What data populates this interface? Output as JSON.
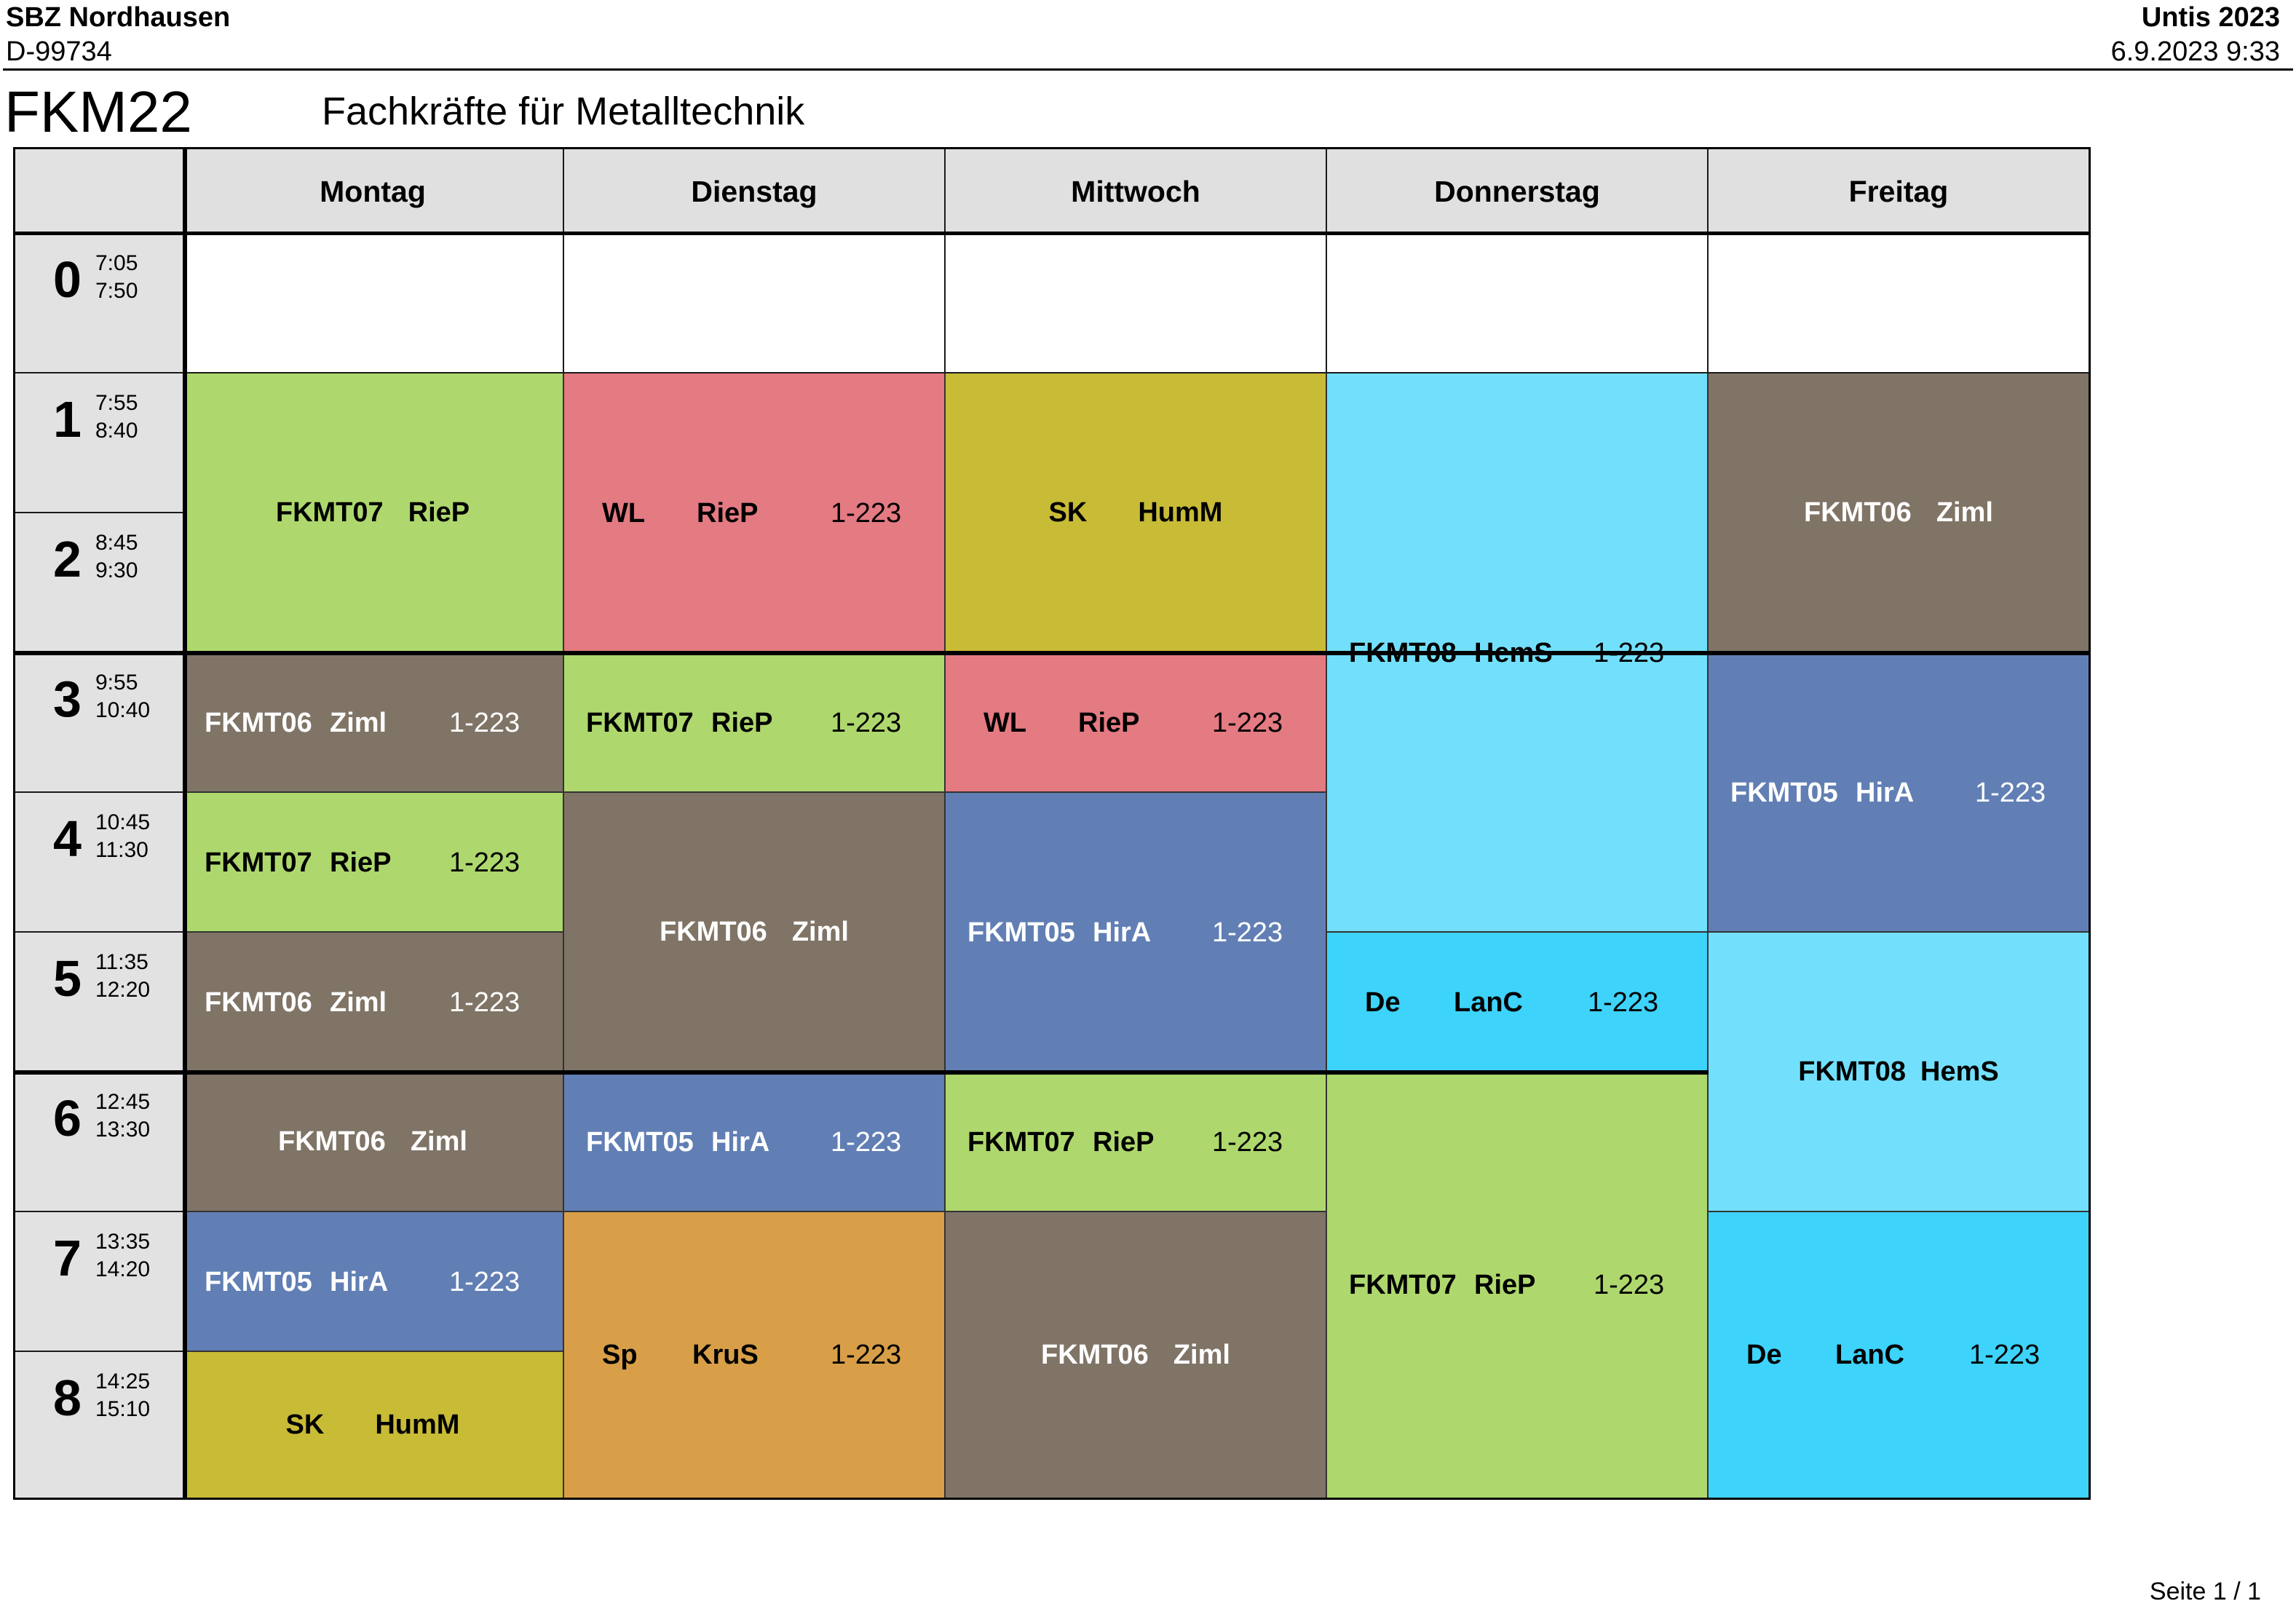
{
  "header": {
    "school": "SBZ Nordhausen",
    "id": "D-99734",
    "app": "Untis 2023",
    "datetime": "6.9.2023  9:33"
  },
  "class": {
    "code": "FKM22",
    "name": "Fachkräfte für Metalltechnik"
  },
  "days": [
    "Montag",
    "Dienstag",
    "Mittwoch",
    "Donnerstag",
    "Freitag"
  ],
  "periods": [
    {
      "num": "0",
      "start": "7:05",
      "end": "7:50"
    },
    {
      "num": "1",
      "start": "7:55",
      "end": "8:40"
    },
    {
      "num": "2",
      "start": "8:45",
      "end": "9:30"
    },
    {
      "num": "3",
      "start": "9:55",
      "end": "10:40"
    },
    {
      "num": "4",
      "start": "10:45",
      "end": "11:30"
    },
    {
      "num": "5",
      "start": "11:35",
      "end": "12:20"
    },
    {
      "num": "6",
      "start": "12:45",
      "end": "13:30"
    },
    {
      "num": "7",
      "start": "13:35",
      "end": "14:20"
    },
    {
      "num": "8",
      "start": "14:25",
      "end": "15:10"
    }
  ],
  "lessons": [
    {
      "subject": "FKMT07",
      "teacher": "RieP",
      "room": "",
      "color": "#aed86d",
      "text_color": "#000000"
    },
    {
      "subject": "FKMT06",
      "teacher": "Ziml",
      "room": "1-223",
      "color": "#7f7466",
      "text_color": "#ffffff"
    },
    {
      "subject": "FKMT07",
      "teacher": "RieP",
      "room": "1-223",
      "color": "#aed86d",
      "text_color": "#000000"
    },
    {
      "subject": "FKMT06",
      "teacher": "Ziml",
      "room": "1-223",
      "color": "#7f7466",
      "text_color": "#ffffff"
    },
    {
      "subject": "FKMT06",
      "teacher": "Ziml",
      "room": "",
      "color": "#7f7466",
      "text_color": "#ffffff"
    },
    {
      "subject": "FKMT05",
      "teacher": "HirA",
      "room": "1-223",
      "color": "#617fb4",
      "text_color": "#ffffff"
    },
    {
      "subject": "SK",
      "teacher": "HumM",
      "room": "",
      "color": "#c8bb36",
      "text_color": "#000000"
    },
    {
      "subject": "WL",
      "teacher": "RieP",
      "room": "1-223",
      "color": "#e47a82",
      "text_color": "#000000"
    },
    {
      "subject": "FKMT07",
      "teacher": "RieP",
      "room": "1-223",
      "color": "#aed86d",
      "text_color": "#000000"
    },
    {
      "subject": "FKMT06",
      "teacher": "Ziml",
      "room": "",
      "color": "#7f7466",
      "text_color": "#ffffff"
    },
    {
      "subject": "FKMT05",
      "teacher": "HirA",
      "room": "1-223",
      "color": "#617fb4",
      "text_color": "#ffffff"
    },
    {
      "subject": "Sp",
      "teacher": "KruS",
      "room": "1-223",
      "color": "#d89f48",
      "text_color": "#000000"
    },
    {
      "subject": "SK",
      "teacher": "HumM",
      "room": "",
      "color": "#c8bb36",
      "text_color": "#000000"
    },
    {
      "subject": "WL",
      "teacher": "RieP",
      "room": "1-223",
      "color": "#e47a82",
      "text_color": "#000000"
    },
    {
      "subject": "FKMT05",
      "teacher": "HirA",
      "room": "1-223",
      "color": "#617fb4",
      "text_color": "#ffffff"
    },
    {
      "subject": "FKMT07",
      "teacher": "RieP",
      "room": "1-223",
      "color": "#aed86d",
      "text_color": "#000000"
    },
    {
      "subject": "FKMT06",
      "teacher": "Ziml",
      "room": "",
      "color": "#7f7466",
      "text_color": "#ffffff"
    },
    {
      "subject": "FKMT08",
      "teacher": "HemS",
      "room": "1-223",
      "color": "#72e0fd",
      "text_color": "#000000"
    },
    {
      "subject": "De",
      "teacher": "LanC",
      "room": "1-223",
      "color": "#3ed3fb",
      "text_color": "#000000"
    },
    {
      "subject": "FKMT07",
      "teacher": "RieP",
      "room": "1-223",
      "color": "#aed86d",
      "text_color": "#000000"
    },
    {
      "subject": "FKMT06",
      "teacher": "Ziml",
      "room": "",
      "color": "#7f7466",
      "text_color": "#ffffff"
    },
    {
      "subject": "FKMT05",
      "teacher": "HirA",
      "room": "1-223",
      "color": "#617fb4",
      "text_color": "#ffffff"
    },
    {
      "subject": "FKMT08",
      "teacher": "HemS",
      "room": "",
      "color": "#72e0fd",
      "text_color": "#000000"
    },
    {
      "subject": "De",
      "teacher": "LanC",
      "room": "1-223",
      "color": "#3ed3fb",
      "text_color": "#000000"
    }
  ],
  "footer": {
    "page": "Seite 1 / 1"
  }
}
